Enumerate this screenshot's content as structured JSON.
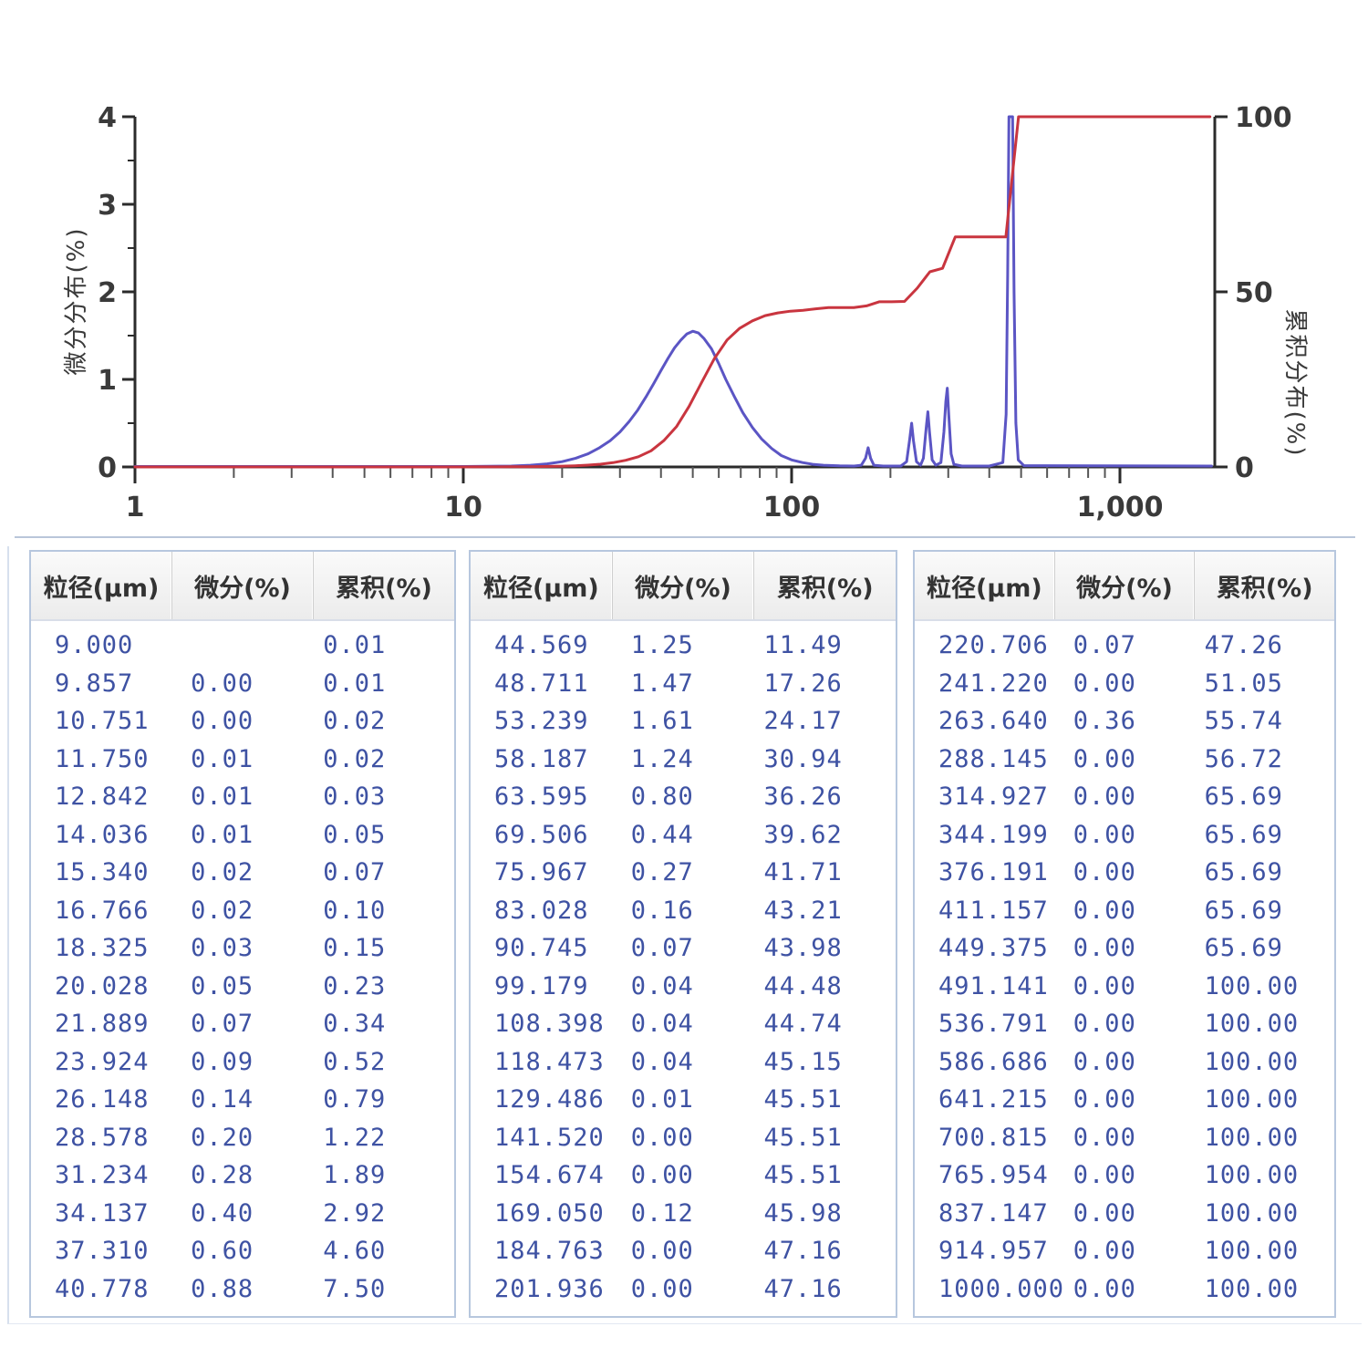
{
  "chart": {
    "left_axis": {
      "label": "微分分布(%)",
      "ticks": [
        0,
        1,
        2,
        3,
        4
      ],
      "minor_step": 0.5,
      "max": 4
    },
    "right_axis": {
      "label": "累积分布(%)",
      "ticks": [
        0,
        50,
        100
      ],
      "max": 100
    },
    "x_axis": {
      "ticks": [
        1,
        10,
        100,
        1000
      ],
      "tick_labels": [
        "1",
        "10",
        "100",
        "1,000"
      ],
      "min": 1,
      "max": 1945
    },
    "colors": {
      "differential": "#5b55c4",
      "cumulative": "#c9353f",
      "axis": "#2b2b2b",
      "tick_label": "#3a3a3a"
    }
  },
  "chart_data": {
    "type": "line",
    "x_scale": "log",
    "xlim": [
      1,
      1945
    ],
    "ylim_left": [
      0,
      4
    ],
    "ylim_right": [
      0,
      100
    ],
    "grid": false,
    "legend": "none",
    "series": [
      {
        "name": "微分分布(%)",
        "axis": "left",
        "color": "#5b55c4",
        "points": [
          [
            1,
            0.005
          ],
          [
            10,
            0.005
          ],
          [
            14,
            0.01
          ],
          [
            16,
            0.02
          ],
          [
            18,
            0.035
          ],
          [
            20,
            0.06
          ],
          [
            22,
            0.1
          ],
          [
            24,
            0.15
          ],
          [
            26,
            0.22
          ],
          [
            28,
            0.3
          ],
          [
            30,
            0.4
          ],
          [
            32,
            0.52
          ],
          [
            34,
            0.65
          ],
          [
            36,
            0.8
          ],
          [
            38,
            0.95
          ],
          [
            40,
            1.1
          ],
          [
            42,
            1.24
          ],
          [
            44,
            1.36
          ],
          [
            46,
            1.45
          ],
          [
            48,
            1.52
          ],
          [
            50,
            1.55
          ],
          [
            52,
            1.53
          ],
          [
            54,
            1.47
          ],
          [
            57,
            1.35
          ],
          [
            60,
            1.18
          ],
          [
            63,
            1.0
          ],
          [
            67,
            0.8
          ],
          [
            71,
            0.62
          ],
          [
            76,
            0.45
          ],
          [
            81,
            0.32
          ],
          [
            87,
            0.21
          ],
          [
            93,
            0.13
          ],
          [
            100,
            0.08
          ],
          [
            108,
            0.05
          ],
          [
            116,
            0.03
          ],
          [
            125,
            0.02
          ],
          [
            140,
            0.012
          ],
          [
            155,
            0.01
          ],
          [
            163,
            0.02
          ],
          [
            168,
            0.1
          ],
          [
            171,
            0.22
          ],
          [
            174,
            0.1
          ],
          [
            178,
            0.02
          ],
          [
            190,
            0.01
          ],
          [
            215,
            0.01
          ],
          [
            224,
            0.06
          ],
          [
            229,
            0.32
          ],
          [
            232,
            0.5
          ],
          [
            235,
            0.3
          ],
          [
            240,
            0.06
          ],
          [
            247,
            0.02
          ],
          [
            252,
            0.1
          ],
          [
            257,
            0.45
          ],
          [
            260,
            0.63
          ],
          [
            263,
            0.4
          ],
          [
            268,
            0.08
          ],
          [
            275,
            0.02
          ],
          [
            285,
            0.05
          ],
          [
            291,
            0.4
          ],
          [
            295,
            0.75
          ],
          [
            298,
            0.9
          ],
          [
            301,
            0.6
          ],
          [
            306,
            0.15
          ],
          [
            312,
            0.03
          ],
          [
            330,
            0.01
          ],
          [
            400,
            0.01
          ],
          [
            440,
            0.05
          ],
          [
            450,
            0.6
          ],
          [
            455,
            2.2
          ],
          [
            459,
            4.0
          ],
          [
            471,
            4.0
          ],
          [
            476,
            2.0
          ],
          [
            482,
            0.5
          ],
          [
            490,
            0.08
          ],
          [
            510,
            0.015
          ],
          [
            1900,
            0.01
          ]
        ]
      },
      {
        "name": "累积分布(%)",
        "axis": "right",
        "color": "#c9353f",
        "points": [
          [
            1,
            0
          ],
          [
            5,
            0
          ],
          [
            9,
            0.01
          ],
          [
            9.857,
            0.01
          ],
          [
            10.751,
            0.02
          ],
          [
            11.75,
            0.02
          ],
          [
            12.842,
            0.03
          ],
          [
            14.036,
            0.05
          ],
          [
            15.34,
            0.07
          ],
          [
            16.766,
            0.1
          ],
          [
            18.325,
            0.15
          ],
          [
            20.028,
            0.23
          ],
          [
            21.889,
            0.34
          ],
          [
            23.924,
            0.52
          ],
          [
            26.148,
            0.79
          ],
          [
            28.578,
            1.22
          ],
          [
            31.234,
            1.89
          ],
          [
            34.137,
            2.92
          ],
          [
            37.31,
            4.6
          ],
          [
            40.778,
            7.5
          ],
          [
            44.569,
            11.49
          ],
          [
            48.711,
            17.26
          ],
          [
            53.239,
            24.17
          ],
          [
            58.187,
            30.94
          ],
          [
            63.595,
            36.26
          ],
          [
            69.506,
            39.62
          ],
          [
            75.967,
            41.71
          ],
          [
            83.028,
            43.21
          ],
          [
            90.745,
            43.98
          ],
          [
            99.179,
            44.48
          ],
          [
            108.398,
            44.74
          ],
          [
            118.473,
            45.15
          ],
          [
            129.486,
            45.51
          ],
          [
            141.52,
            45.51
          ],
          [
            154.674,
            45.51
          ],
          [
            169.05,
            45.98
          ],
          [
            184.763,
            47.16
          ],
          [
            201.936,
            47.16
          ],
          [
            220.706,
            47.26
          ],
          [
            241.22,
            51.05
          ],
          [
            263.64,
            55.74
          ],
          [
            288.145,
            56.72
          ],
          [
            314.927,
            65.69
          ],
          [
            344.199,
            65.69
          ],
          [
            376.191,
            65.69
          ],
          [
            411.157,
            65.69
          ],
          [
            449.375,
            65.69
          ],
          [
            491.141,
            100
          ],
          [
            1000,
            100
          ],
          [
            1880,
            100
          ]
        ]
      }
    ]
  },
  "tables": {
    "headers": [
      "粒径(μm)",
      "微分(%)",
      "累积(%)"
    ],
    "groups": [
      {
        "rows": [
          [
            "9.000",
            "",
            "0.01"
          ],
          [
            "9.857",
            "0.00",
            "0.01"
          ],
          [
            "10.751",
            "0.00",
            "0.02"
          ],
          [
            "11.750",
            "0.01",
            "0.02"
          ],
          [
            "12.842",
            "0.01",
            "0.03"
          ],
          [
            "14.036",
            "0.01",
            "0.05"
          ],
          [
            "15.340",
            "0.02",
            "0.07"
          ],
          [
            "16.766",
            "0.02",
            "0.10"
          ],
          [
            "18.325",
            "0.03",
            "0.15"
          ],
          [
            "20.028",
            "0.05",
            "0.23"
          ],
          [
            "21.889",
            "0.07",
            "0.34"
          ],
          [
            "23.924",
            "0.09",
            "0.52"
          ],
          [
            "26.148",
            "0.14",
            "0.79"
          ],
          [
            "28.578",
            "0.20",
            "1.22"
          ],
          [
            "31.234",
            "0.28",
            "1.89"
          ],
          [
            "34.137",
            "0.40",
            "2.92"
          ],
          [
            "37.310",
            "0.60",
            "4.60"
          ],
          [
            "40.778",
            "0.88",
            "7.50"
          ]
        ]
      },
      {
        "rows": [
          [
            "44.569",
            "1.25",
            "11.49"
          ],
          [
            "48.711",
            "1.47",
            "17.26"
          ],
          [
            "53.239",
            "1.61",
            "24.17"
          ],
          [
            "58.187",
            "1.24",
            "30.94"
          ],
          [
            "63.595",
            "0.80",
            "36.26"
          ],
          [
            "69.506",
            "0.44",
            "39.62"
          ],
          [
            "75.967",
            "0.27",
            "41.71"
          ],
          [
            "83.028",
            "0.16",
            "43.21"
          ],
          [
            "90.745",
            "0.07",
            "43.98"
          ],
          [
            "99.179",
            "0.04",
            "44.48"
          ],
          [
            "108.398",
            "0.04",
            "44.74"
          ],
          [
            "118.473",
            "0.04",
            "45.15"
          ],
          [
            "129.486",
            "0.01",
            "45.51"
          ],
          [
            "141.520",
            "0.00",
            "45.51"
          ],
          [
            "154.674",
            "0.00",
            "45.51"
          ],
          [
            "169.050",
            "0.12",
            "45.98"
          ],
          [
            "184.763",
            "0.00",
            "47.16"
          ],
          [
            "201.936",
            "0.00",
            "47.16"
          ]
        ]
      },
      {
        "rows": [
          [
            "220.706",
            "0.07",
            "47.26"
          ],
          [
            "241.220",
            "0.00",
            "51.05"
          ],
          [
            "263.640",
            "0.36",
            "55.74"
          ],
          [
            "288.145",
            "0.00",
            "56.72"
          ],
          [
            "314.927",
            "0.00",
            "65.69"
          ],
          [
            "344.199",
            "0.00",
            "65.69"
          ],
          [
            "376.191",
            "0.00",
            "65.69"
          ],
          [
            "411.157",
            "0.00",
            "65.69"
          ],
          [
            "449.375",
            "0.00",
            "65.69"
          ],
          [
            "491.141",
            "0.00",
            "100.00"
          ],
          [
            "536.791",
            "0.00",
            "100.00"
          ],
          [
            "586.686",
            "0.00",
            "100.00"
          ],
          [
            "641.215",
            "0.00",
            "100.00"
          ],
          [
            "700.815",
            "0.00",
            "100.00"
          ],
          [
            "765.954",
            "0.00",
            "100.00"
          ],
          [
            "837.147",
            "0.00",
            "100.00"
          ],
          [
            "914.957",
            "0.00",
            "100.00"
          ],
          [
            "1000.000",
            "0.00",
            "100.00"
          ]
        ]
      }
    ]
  }
}
